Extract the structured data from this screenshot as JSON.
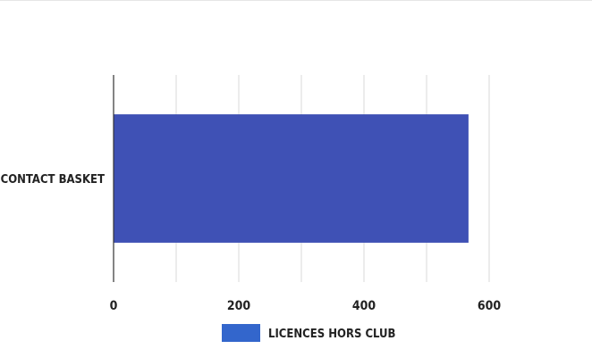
{
  "chart_data": {
    "type": "bar",
    "orientation": "horizontal",
    "categories": [
      "CONTACT BASKET"
    ],
    "series": [
      {
        "name": "LICENCES HORS CLUB",
        "values": [
          567
        ],
        "color": "#3F51B5"
      }
    ],
    "xlim": [
      0,
      700
    ],
    "xticks": [
      0,
      200,
      400,
      600
    ],
    "xtick_labels": [
      "0",
      "200",
      "400",
      "600"
    ],
    "grid": true,
    "legend_position": "bottom",
    "legend_swatch_color": "#3366CC"
  }
}
